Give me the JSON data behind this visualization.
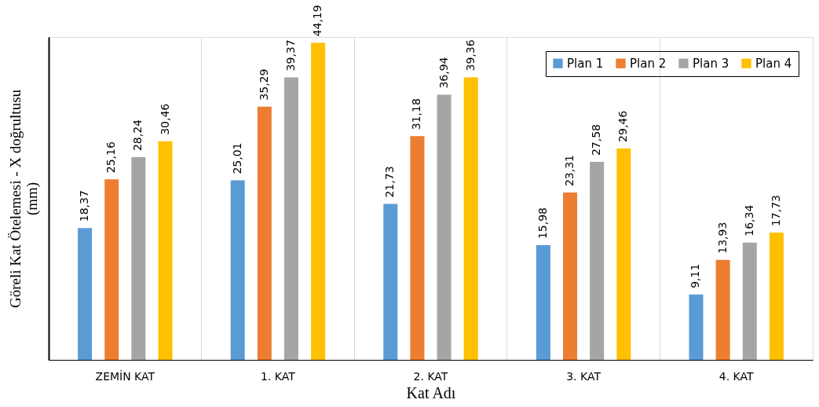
{
  "chart_data": {
    "type": "bar",
    "xlabel": "Kat Adı",
    "ylabel": "Göreli Kat Ötelemesi - X doğrultusu\n(mm)",
    "categories": [
      "ZEMİN KAT",
      "1. KAT",
      "2. KAT",
      "3. KAT",
      "4. KAT"
    ],
    "series": [
      {
        "name": "Plan 1",
        "color": "#5b9bd5",
        "values": [
          18.37,
          25.01,
          21.73,
          15.98,
          9.11
        ],
        "value_labels": [
          "18,37",
          "25,01",
          "21,73",
          "15,98",
          "9,11"
        ]
      },
      {
        "name": "Plan 2",
        "color": "#ed7d31",
        "values": [
          25.16,
          35.29,
          31.18,
          23.31,
          13.93
        ],
        "value_labels": [
          "25,16",
          "35,29",
          "31,18",
          "23,31",
          "13,93"
        ]
      },
      {
        "name": "Plan 3",
        "color": "#a5a5a5",
        "values": [
          28.24,
          39.37,
          36.94,
          27.58,
          16.34
        ],
        "value_labels": [
          "28,24",
          "39,37",
          "36,94",
          "27,58",
          "16,34"
        ]
      },
      {
        "name": "Plan 4",
        "color": "#ffc000",
        "values": [
          30.46,
          44.19,
          39.36,
          29.46,
          17.73
        ],
        "value_labels": [
          "30,46",
          "44,19",
          "39,36",
          "29,46",
          "17,73"
        ]
      }
    ],
    "grid": "x",
    "legend": "top right",
    "tick_labels": "x"
  }
}
